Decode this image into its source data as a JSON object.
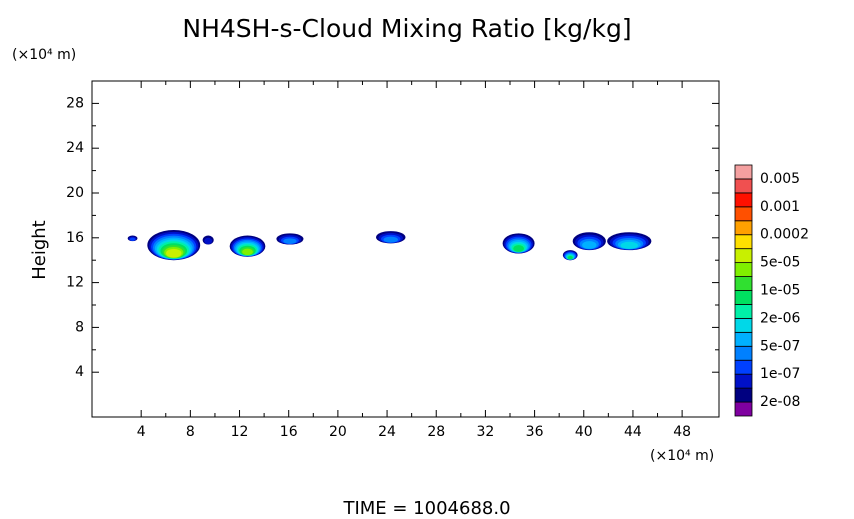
{
  "chart_data": {
    "type": "contour",
    "title": "NH4SH-s-Cloud Mixing Ratio [kg/kg]",
    "y_unit": "(×10⁴ m)",
    "x_unit": "(×10⁴ m)",
    "ylabel": "Height",
    "footer": "TIME = 1004688.0",
    "xlim": [
      0,
      51
    ],
    "ylim": [
      0,
      30
    ],
    "xticks": [
      4,
      8,
      12,
      16,
      20,
      24,
      28,
      32,
      36,
      40,
      44,
      48
    ],
    "yticks": [
      4,
      8,
      12,
      16,
      20,
      24,
      28
    ],
    "colorbar": {
      "colors": [
        "#7f00a0",
        "#000080",
        "#0010c8",
        "#0040ff",
        "#0080ff",
        "#00b0ff",
        "#00d8e8",
        "#00f0a8",
        "#00e060",
        "#30e030",
        "#80f000",
        "#c8f000",
        "#ffe000",
        "#ffa000",
        "#ff5000",
        "#ff1000",
        "#f05050",
        "#f4a0a0"
      ],
      "ticks": [
        {
          "value": 2e-08,
          "label": "2e-08"
        },
        {
          "value": 1e-07,
          "label": "1e-07"
        },
        {
          "value": 5e-07,
          "label": "5e-07"
        },
        {
          "value": 2e-06,
          "label": "2e-06"
        },
        {
          "value": 1e-05,
          "label": "1e-05"
        },
        {
          "value": 5e-05,
          "label": "5e-05"
        },
        0.0002,
        0.001,
        0.005
      ]
    },
    "regions": [
      {
        "x": [
          2.9,
          3.7
        ],
        "y": [
          15.7,
          16.2
        ],
        "levels": 3
      },
      {
        "x": [
          4.5,
          8.8
        ],
        "y": [
          14.0,
          16.7
        ],
        "levels": 11
      },
      {
        "x": [
          9.0,
          9.9
        ],
        "y": [
          15.4,
          16.2
        ],
        "levels": 2
      },
      {
        "x": [
          11.2,
          14.1
        ],
        "y": [
          14.3,
          16.2
        ],
        "levels": 10
      },
      {
        "x": [
          15.0,
          17.2
        ],
        "y": [
          15.4,
          16.4
        ],
        "levels": 4
      },
      {
        "x": [
          23.1,
          25.5
        ],
        "y": [
          15.5,
          16.6
        ],
        "levels": 4
      },
      {
        "x": [
          33.4,
          36.0
        ],
        "y": [
          14.6,
          16.4
        ],
        "levels": 8
      },
      {
        "x": [
          38.3,
          39.5
        ],
        "y": [
          14.0,
          14.9
        ],
        "levels": 8
      },
      {
        "x": [
          39.1,
          41.8
        ],
        "y": [
          14.9,
          16.5
        ],
        "levels": 5
      },
      {
        "x": [
          41.9,
          45.5
        ],
        "y": [
          14.9,
          16.5
        ],
        "levels": 6
      }
    ]
  }
}
